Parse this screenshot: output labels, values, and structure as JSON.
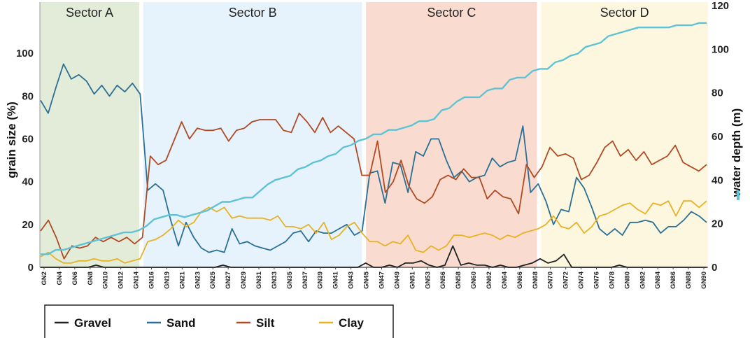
{
  "chart_data": {
    "type": "line",
    "title": "",
    "ylabel_left": "grain size (%)",
    "ylabel_right": "water depth (m)",
    "ylim_left": [
      0,
      120
    ],
    "ylim_right": [
      0,
      120
    ],
    "yticks_left": [
      0,
      20,
      40,
      60,
      80,
      100
    ],
    "yticks_right": [
      0,
      20,
      40,
      60,
      80,
      100,
      120
    ],
    "x_tick_labels": [
      "GN2",
      "GN4",
      "GN6",
      "GN8",
      "GN10",
      "GN12",
      "GN14",
      "GN16",
      "GN19",
      "GN21",
      "GN23",
      "GN25",
      "GN27",
      "GN29",
      "GN31",
      "GN33",
      "GN35",
      "GN37",
      "GN39",
      "GN41",
      "GN43",
      "GN45",
      "GN47",
      "GN49",
      "GN51",
      "GN53",
      "GN56",
      "GN58",
      "GN60",
      "GN62",
      "GN64",
      "GN66",
      "GN68",
      "GN70",
      "GN72",
      "GN74",
      "GN76",
      "GN78",
      "GN80",
      "GN82",
      "GN84",
      "GN86",
      "GN88",
      "GN90"
    ],
    "sectors": [
      {
        "name": "Sector A",
        "from": 0,
        "to": 12.5,
        "color": "#e3ecd9"
      },
      {
        "name": "Sector B",
        "from": 13,
        "to": 40.5,
        "color": "#e6f3fc"
      },
      {
        "name": "Sector C",
        "from": 41,
        "to": 62.5,
        "color": "#f9dccf"
      },
      {
        "name": "Sector D",
        "from": 63,
        "to": 84,
        "color": "#fdf7e0"
      }
    ],
    "series": [
      {
        "name": "Gravel",
        "axis": "left",
        "color": "#222222",
        "values": [
          0,
          0,
          0,
          0,
          0,
          0,
          0,
          1,
          0,
          0,
          0,
          0,
          0,
          0,
          0,
          0,
          0,
          0,
          0,
          0,
          0,
          0,
          0,
          1,
          0,
          0,
          0,
          0,
          0,
          0,
          0,
          0,
          0,
          0,
          0,
          0,
          0,
          0,
          0,
          0,
          0,
          2,
          0,
          0,
          1,
          0,
          2,
          2,
          3,
          1,
          0,
          1,
          10,
          1,
          2,
          1,
          1,
          0,
          1,
          0,
          0,
          1,
          2,
          4,
          2,
          3,
          6,
          0,
          0,
          0,
          0,
          0,
          0,
          1,
          0,
          0,
          0,
          0,
          0,
          0,
          0,
          0,
          0,
          0,
          0
        ]
      },
      {
        "name": "Sand",
        "axis": "left",
        "color": "#2a6f96",
        "values": [
          78,
          72,
          84,
          95,
          88,
          90,
          87,
          81,
          85,
          80,
          85,
          82,
          86,
          81,
          36,
          39,
          36,
          22,
          10,
          21,
          14,
          9,
          7,
          8,
          7,
          18,
          11,
          12,
          10,
          9,
          8,
          10,
          12,
          16,
          17,
          12,
          17,
          16,
          16,
          18,
          20,
          15,
          17,
          44,
          45,
          30,
          49,
          48,
          35,
          54,
          52,
          60,
          60,
          50,
          42,
          45,
          40,
          42,
          43,
          51,
          47,
          49,
          50,
          66,
          35,
          39,
          31,
          20,
          27,
          26,
          42,
          37,
          28,
          18,
          15,
          18,
          15,
          21,
          21,
          22,
          21,
          16,
          19,
          19,
          22,
          26,
          24,
          21
        ]
      },
      {
        "name": "Silt",
        "axis": "left",
        "color": "#b04a24",
        "values": [
          17,
          22,
          14,
          4,
          10,
          9,
          10,
          14,
          12,
          14,
          12,
          14,
          11,
          14,
          52,
          48,
          50,
          59,
          68,
          60,
          65,
          64,
          64,
          65,
          59,
          64,
          65,
          68,
          69,
          69,
          69,
          64,
          63,
          72,
          68,
          63,
          70,
          63,
          66,
          63,
          60,
          43,
          43,
          59,
          35,
          40,
          50,
          38,
          32,
          30,
          33,
          41,
          43,
          41,
          46,
          42,
          42,
          32,
          36,
          33,
          32,
          25,
          48,
          42,
          47,
          56,
          52,
          53,
          51,
          41,
          43,
          49,
          56,
          59,
          52,
          55,
          50,
          54,
          48,
          50,
          52,
          57,
          49,
          47,
          45,
          48
        ]
      },
      {
        "name": "Clay",
        "axis": "left",
        "color": "#e8b126",
        "values": [
          5,
          7,
          4,
          2,
          2,
          3,
          3,
          4,
          3,
          3,
          4,
          2,
          3,
          4,
          12,
          13,
          15,
          18,
          22,
          19,
          21,
          26,
          28,
          26,
          28,
          23,
          24,
          23,
          23,
          23,
          22,
          24,
          19,
          19,
          18,
          20,
          16,
          21,
          13,
          15,
          19,
          21,
          16,
          12,
          12,
          10,
          12,
          11,
          15,
          8,
          7,
          10,
          8,
          10,
          15,
          15,
          14,
          15,
          16,
          15,
          13,
          15,
          14,
          16,
          17,
          18,
          20,
          24,
          19,
          18,
          21,
          16,
          19,
          24,
          25,
          27,
          29,
          30,
          27,
          25,
          30,
          29,
          31,
          24,
          31,
          31,
          28,
          31
        ]
      },
      {
        "name": "water depth",
        "axis": "right",
        "color": "#5fc3d6",
        "values": [
          6,
          6,
          8,
          8,
          9,
          10,
          11,
          12,
          13,
          14,
          15,
          16,
          16,
          17,
          19,
          22,
          23,
          24,
          24,
          23,
          24,
          25,
          26,
          28,
          30,
          30,
          31,
          32,
          32,
          35,
          38,
          40,
          41,
          42,
          45,
          46,
          48,
          49,
          51,
          52,
          55,
          56,
          58,
          59,
          61,
          61,
          63,
          63,
          64,
          65,
          67,
          67,
          68,
          72,
          73,
          76,
          78,
          78,
          78,
          81,
          82,
          82,
          86,
          87,
          87,
          90,
          91,
          91,
          94,
          95,
          97,
          98,
          101,
          102,
          103,
          106,
          107,
          108,
          109,
          110,
          110,
          110,
          110,
          110,
          111,
          111,
          111,
          112,
          112
        ]
      }
    ],
    "legend": {
      "position": "bottom",
      "entries": [
        "Gravel",
        "Sand",
        "Silt",
        "Clay"
      ]
    }
  }
}
